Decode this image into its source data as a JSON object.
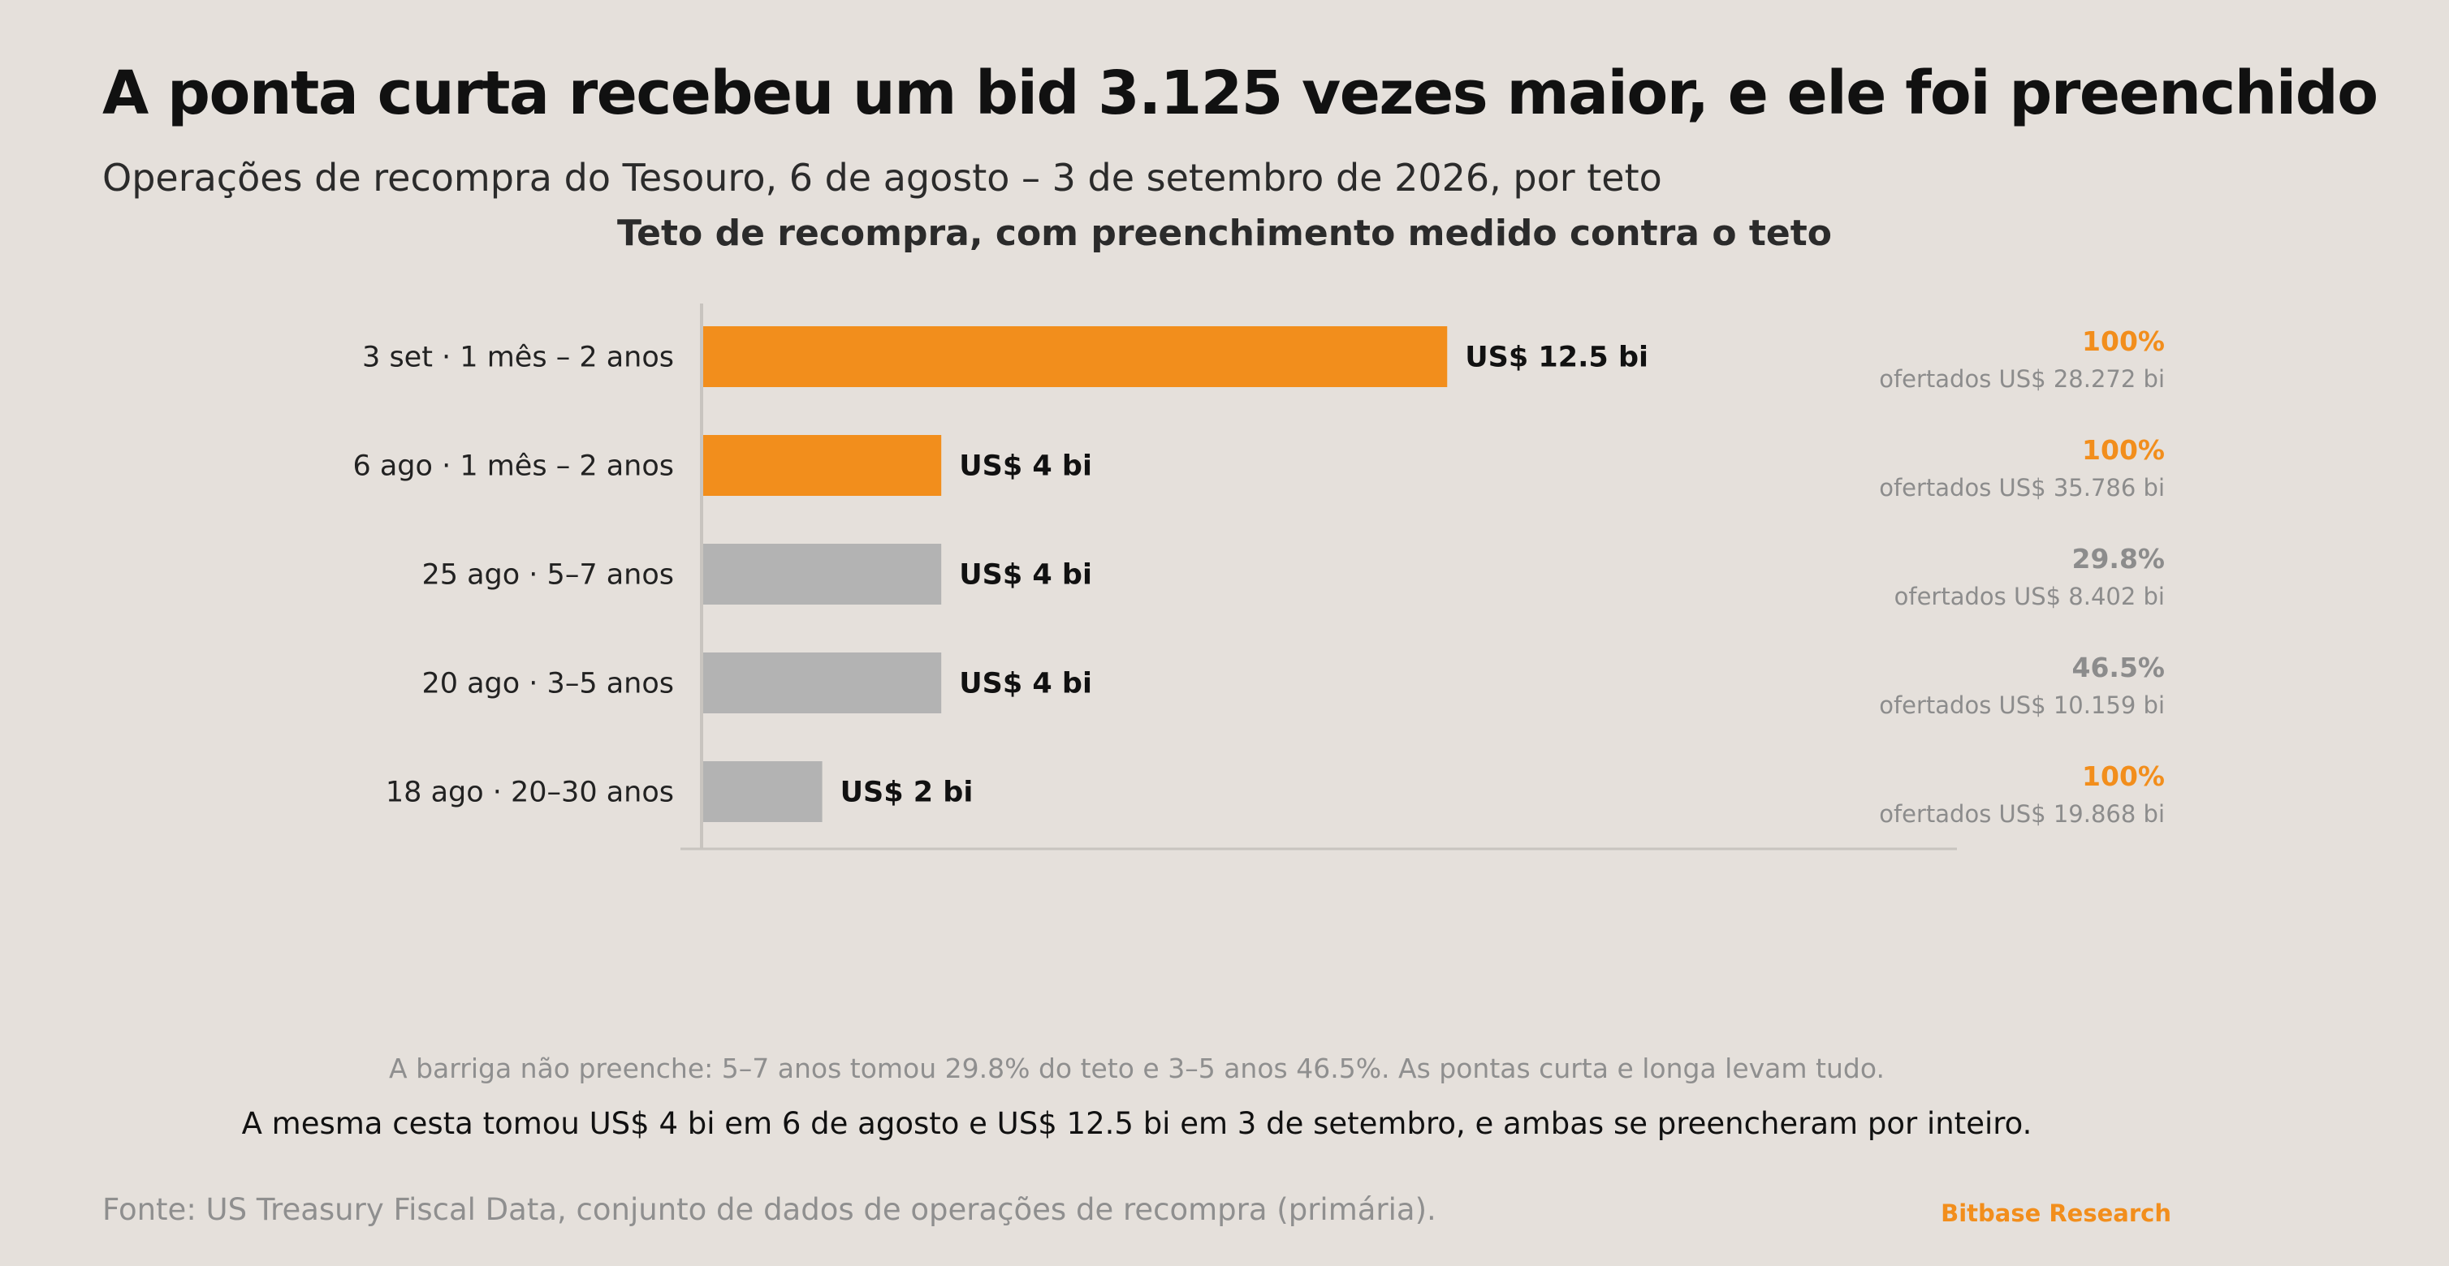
{
  "header": {
    "title": "A ponta curta recebeu um bid 3.125 vezes maior, e ele foi preenchido",
    "subtitle": "Operações de recompra do Tesouro, 6 de agosto – 3 de setembro de 2026, por teto"
  },
  "chart_data": {
    "type": "bar",
    "orientation": "horizontal",
    "title": "Teto de recompra, com preenchimento medido contra o teto",
    "xlabel": "",
    "ylabel": "",
    "xlim": [
      0,
      17
    ],
    "grid": false,
    "categories": [
      "3 set · 1 mês – 2 anos",
      "6 ago · 1 mês – 2 anos",
      "25 ago · 5–7 anos",
      "20 ago · 3–5 anos",
      "18 ago · 20–30 anos"
    ],
    "values": [
      12.5,
      4,
      4,
      4,
      2
    ],
    "value_labels": [
      "US$ 12.5 bi",
      "US$ 4 bi",
      "US$ 4 bi",
      "US$ 4 bi",
      "US$ 2 bi"
    ],
    "fill_pct": [
      100,
      100,
      29.8,
      46.5,
      100
    ],
    "fill_labels": [
      "100%",
      "100%",
      "29.8%",
      "46.5%",
      "100%"
    ],
    "offered": [
      28.272,
      35.786,
      8.402,
      10.159,
      19.868
    ],
    "offered_labels": [
      "ofertados US$ 28.272 bi",
      "ofertados US$ 35.786 bi",
      "ofertados US$ 8.402 bi",
      "ofertados US$ 10.159 bi",
      "ofertados US$ 19.868 bi"
    ],
    "highlight": [
      true,
      true,
      false,
      false,
      false
    ],
    "colors": {
      "highlight": "#f28e1c",
      "muted": "#b3b3b3",
      "muted_text": "#8c8c8c",
      "axis": "#c8c4bf"
    }
  },
  "footer": {
    "note": "A barriga não preenche: 5–7 anos tomou 29.8% do teto e 3–5 anos 46.5%. As pontas curta e longa levam tudo.",
    "takeaway": "A mesma cesta tomou US$ 4 bi em 6 de agosto e US$ 12.5 bi em 3 de setembro, e ambas se preencheram por inteiro.",
    "source": "Fonte: US Treasury Fiscal Data, conjunto de dados de operações de recompra (primária).",
    "brand": "Bitbase Research"
  }
}
